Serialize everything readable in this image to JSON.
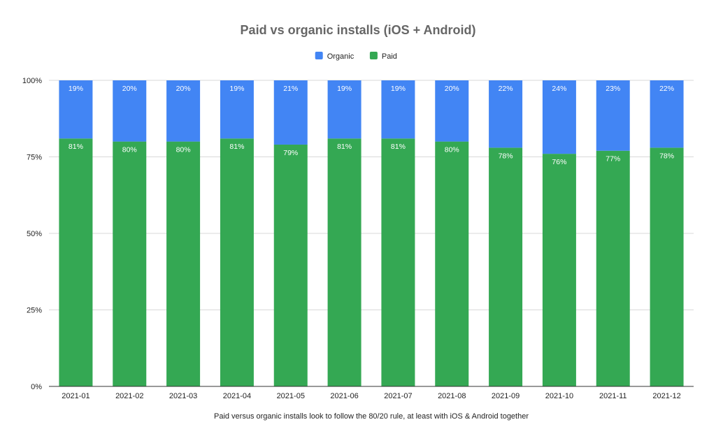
{
  "chart_data": {
    "type": "bar",
    "stacked": true,
    "percent_stacked": true,
    "title": "Paid vs organic installs (iOS + Android)",
    "xlabel": "Paid versus organic installs look to follow the 80/20 rule, at least with iOS & Android together",
    "ylabel": "",
    "ylim": [
      0,
      100
    ],
    "yticks": [
      "0%",
      "25%",
      "50%",
      "75%",
      "100%"
    ],
    "grid": true,
    "legend_position": "top",
    "categories": [
      "2021-01",
      "2021-02",
      "2021-03",
      "2021-04",
      "2021-05",
      "2021-06",
      "2021-07",
      "2021-08",
      "2021-09",
      "2021-10",
      "2021-11",
      "2021-12"
    ],
    "series": [
      {
        "name": "Organic",
        "color": "#4285f4",
        "values": [
          19,
          20,
          20,
          19,
          21,
          19,
          19,
          20,
          22,
          24,
          23,
          22
        ],
        "labels": [
          "19%",
          "20%",
          "20%",
          "19%",
          "21%",
          "19%",
          "19%",
          "20%",
          "22%",
          "24%",
          "23%",
          "22%"
        ]
      },
      {
        "name": "Paid",
        "color": "#34a853",
        "values": [
          81,
          80,
          80,
          81,
          79,
          81,
          81,
          80,
          78,
          76,
          77,
          78
        ],
        "labels": [
          "81%",
          "80%",
          "80%",
          "81%",
          "79%",
          "81%",
          "81%",
          "80%",
          "78%",
          "76%",
          "77%",
          "78%"
        ]
      }
    ]
  }
}
